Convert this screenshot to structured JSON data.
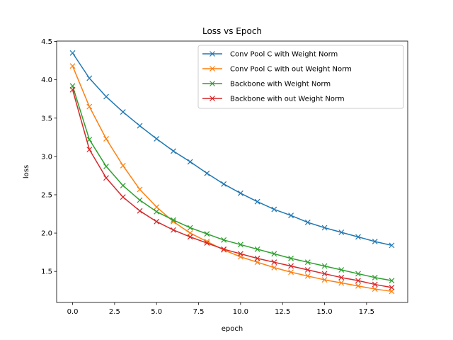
{
  "chart_data": {
    "type": "line",
    "title": "Loss vs Epoch",
    "xlabel": "epoch",
    "ylabel": "loss",
    "xlim": [
      -0.95,
      19.95
    ],
    "ylim": [
      1.095,
      4.505
    ],
    "xticks": [
      0.0,
      2.5,
      5.0,
      7.5,
      10.0,
      12.5,
      15.0,
      17.5
    ],
    "xtick_labels": [
      "0.0",
      "2.5",
      "5.0",
      "7.5",
      "10.0",
      "12.5",
      "15.0",
      "17.5"
    ],
    "yticks": [
      1.5,
      2.0,
      2.5,
      3.0,
      3.5,
      4.0,
      4.5
    ],
    "ytick_labels": [
      "1.5",
      "2.0",
      "2.5",
      "3.0",
      "3.5",
      "4.0",
      "4.5"
    ],
    "grid": false,
    "legend_position": "top-right",
    "marker": "x",
    "x": [
      0,
      1,
      2,
      3,
      4,
      5,
      6,
      7,
      8,
      9,
      10,
      11,
      12,
      13,
      14,
      15,
      16,
      17,
      18,
      19
    ],
    "series": [
      {
        "name": "Conv Pool C with Weight Norm",
        "color": "#1f77b4",
        "values": [
          4.35,
          4.02,
          3.78,
          3.58,
          3.4,
          3.23,
          3.07,
          2.93,
          2.78,
          2.64,
          2.52,
          2.41,
          2.31,
          2.23,
          2.14,
          2.07,
          2.01,
          1.95,
          1.89,
          1.84
        ]
      },
      {
        "name": "Conv Pool C with out Weight Norm",
        "color": "#ff7f0e",
        "values": [
          4.18,
          3.65,
          3.23,
          2.88,
          2.57,
          2.34,
          2.15,
          2.0,
          1.89,
          1.78,
          1.69,
          1.62,
          1.55,
          1.49,
          1.44,
          1.39,
          1.35,
          1.31,
          1.27,
          1.24
        ]
      },
      {
        "name": "Backbone with Weight Norm",
        "color": "#2ca02c",
        "values": [
          3.92,
          3.22,
          2.87,
          2.62,
          2.43,
          2.28,
          2.17,
          2.07,
          1.99,
          1.91,
          1.85,
          1.79,
          1.73,
          1.67,
          1.62,
          1.57,
          1.52,
          1.47,
          1.42,
          1.38
        ]
      },
      {
        "name": "Backbone with out Weight Norm",
        "color": "#d62728",
        "values": [
          3.87,
          3.09,
          2.72,
          2.47,
          2.29,
          2.15,
          2.04,
          1.95,
          1.87,
          1.79,
          1.73,
          1.67,
          1.62,
          1.57,
          1.52,
          1.47,
          1.42,
          1.38,
          1.33,
          1.29
        ]
      }
    ]
  }
}
